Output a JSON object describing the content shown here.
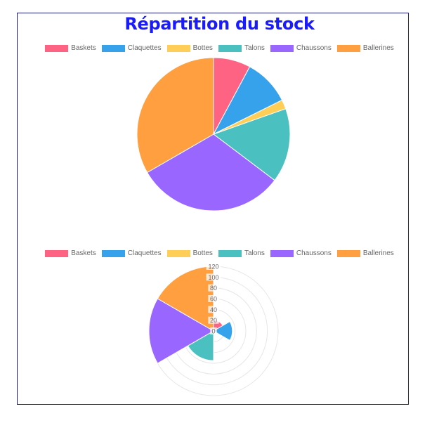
{
  "title": "Répartition du stock",
  "colors": {
    "frame": "#1a1a7a",
    "title": "#1a1aff",
    "legend_text": "#666666",
    "grid": "#e6e6e6"
  },
  "chart_data": [
    {
      "type": "pie",
      "title": "Répartition du stock",
      "categories": [
        "Baskets",
        "Claquettes",
        "Bottes",
        "Talons",
        "Chaussons",
        "Ballerines"
      ],
      "values": [
        20,
        25,
        5,
        40,
        80,
        85
      ],
      "colors": [
        "#ff6384",
        "#36a2eb",
        "#ffce56",
        "#4bc0c0",
        "#9966ff",
        "#ff9f40"
      ],
      "legend": "top"
    },
    {
      "type": "polarArea",
      "categories": [
        "Baskets",
        "Claquettes",
        "Bottes",
        "Talons",
        "Chaussons",
        "Ballerines"
      ],
      "values": [
        20,
        35,
        5,
        55,
        120,
        120
      ],
      "colors": [
        "#ff6384",
        "#36a2eb",
        "#ffce56",
        "#4bc0c0",
        "#9966ff",
        "#ff9f40"
      ],
      "radial_max": 120,
      "radial_ticks": [
        0,
        20,
        40,
        60,
        80,
        100,
        120
      ],
      "legend": "top"
    }
  ]
}
